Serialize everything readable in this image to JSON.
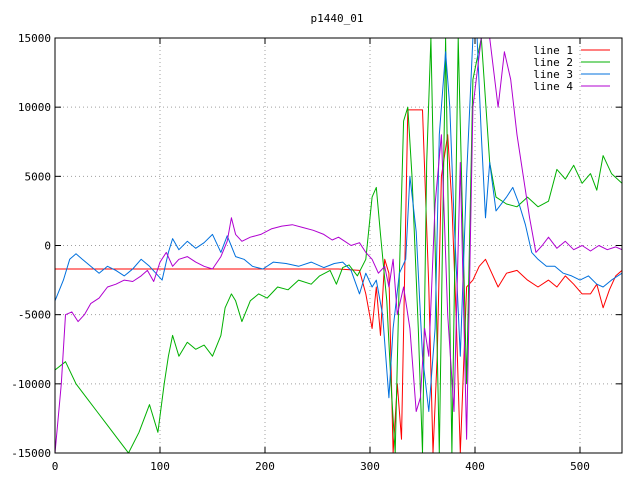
{
  "chart_data": {
    "type": "line",
    "title": "p1440_01",
    "xlabel": "",
    "ylabel": "",
    "xlim": [
      0,
      540
    ],
    "ylim": [
      -15000,
      15000
    ],
    "xticks": [
      0,
      100,
      200,
      300,
      400,
      500
    ],
    "yticks": [
      -15000,
      -10000,
      -5000,
      0,
      5000,
      10000,
      15000
    ],
    "grid": true,
    "legend_position": "top-right",
    "series": [
      {
        "name": "line 1",
        "color": "#ff0000",
        "points": [
          [
            0,
            -1700
          ],
          [
            270,
            -1700
          ],
          [
            290,
            -1800
          ],
          [
            296,
            -3500
          ],
          [
            302,
            -6000
          ],
          [
            306,
            -3000
          ],
          [
            310,
            -6500
          ],
          [
            314,
            -1000
          ],
          [
            318,
            -2000
          ],
          [
            322,
            -15000
          ],
          [
            326,
            -10000
          ],
          [
            330,
            -14000
          ],
          [
            336,
            9800
          ],
          [
            350,
            9800
          ],
          [
            356,
            -3000
          ],
          [
            360,
            -15000
          ],
          [
            364,
            -8000
          ],
          [
            368,
            5000
          ],
          [
            374,
            8000
          ],
          [
            378,
            3000
          ],
          [
            382,
            -5000
          ],
          [
            386,
            -15000
          ],
          [
            392,
            -3000
          ],
          [
            398,
            -2500
          ],
          [
            404,
            -1500
          ],
          [
            410,
            -1000
          ],
          [
            416,
            -2000
          ],
          [
            422,
            -3000
          ],
          [
            430,
            -2000
          ],
          [
            440,
            -1800
          ],
          [
            450,
            -2500
          ],
          [
            460,
            -3000
          ],
          [
            470,
            -2500
          ],
          [
            478,
            -3000
          ],
          [
            486,
            -2200
          ],
          [
            494,
            -2800
          ],
          [
            502,
            -3500
          ],
          [
            510,
            -3500
          ],
          [
            516,
            -2800
          ],
          [
            522,
            -4500
          ],
          [
            528,
            -3200
          ],
          [
            534,
            -2200
          ],
          [
            540,
            -1800
          ]
        ]
      },
      {
        "name": "line 2",
        "color": "#00b000",
        "points": [
          [
            0,
            -9000
          ],
          [
            10,
            -8400
          ],
          [
            20,
            -10000
          ],
          [
            30,
            -11000
          ],
          [
            40,
            -12000
          ],
          [
            50,
            -13000
          ],
          [
            60,
            -14000
          ],
          [
            70,
            -15000
          ],
          [
            80,
            -13500
          ],
          [
            90,
            -11500
          ],
          [
            98,
            -13500
          ],
          [
            104,
            -10000
          ],
          [
            108,
            -8000
          ],
          [
            112,
            -6500
          ],
          [
            118,
            -8000
          ],
          [
            126,
            -7000
          ],
          [
            134,
            -7500
          ],
          [
            142,
            -7200
          ],
          [
            150,
            -8000
          ],
          [
            158,
            -6500
          ],
          [
            162,
            -4500
          ],
          [
            168,
            -3500
          ],
          [
            172,
            -4000
          ],
          [
            178,
            -5500
          ],
          [
            186,
            -4000
          ],
          [
            194,
            -3500
          ],
          [
            202,
            -3800
          ],
          [
            212,
            -3000
          ],
          [
            222,
            -3200
          ],
          [
            232,
            -2500
          ],
          [
            244,
            -2800
          ],
          [
            252,
            -2200
          ],
          [
            262,
            -1800
          ],
          [
            268,
            -2800
          ],
          [
            274,
            -1600
          ],
          [
            280,
            -1400
          ],
          [
            288,
            -2200
          ],
          [
            296,
            -1000
          ],
          [
            302,
            3500
          ],
          [
            306,
            4200
          ],
          [
            310,
            800
          ],
          [
            316,
            -4000
          ],
          [
            320,
            -10000
          ],
          [
            324,
            -15000
          ],
          [
            328,
            -2000
          ],
          [
            332,
            9000
          ],
          [
            336,
            10000
          ],
          [
            340,
            5000
          ],
          [
            346,
            -6000
          ],
          [
            350,
            -15000
          ],
          [
            354,
            6000
          ],
          [
            358,
            15000
          ],
          [
            366,
            -15000
          ],
          [
            372,
            15000
          ],
          [
            378,
            -15000
          ],
          [
            384,
            15000
          ],
          [
            392,
            -10000
          ],
          [
            398,
            12000
          ],
          [
            406,
            15000
          ],
          [
            414,
            6000
          ],
          [
            420,
            3500
          ],
          [
            430,
            3000
          ],
          [
            440,
            2800
          ],
          [
            450,
            3500
          ],
          [
            460,
            2800
          ],
          [
            470,
            3200
          ],
          [
            478,
            5500
          ],
          [
            486,
            4800
          ],
          [
            494,
            5800
          ],
          [
            502,
            4500
          ],
          [
            510,
            5200
          ],
          [
            516,
            4000
          ],
          [
            522,
            6500
          ],
          [
            530,
            5200
          ],
          [
            540,
            4500
          ]
        ]
      },
      {
        "name": "line 3",
        "color": "#0070dd",
        "points": [
          [
            0,
            -4000
          ],
          [
            8,
            -2500
          ],
          [
            14,
            -1000
          ],
          [
            20,
            -600
          ],
          [
            26,
            -1000
          ],
          [
            34,
            -1500
          ],
          [
            42,
            -2000
          ],
          [
            50,
            -1500
          ],
          [
            58,
            -1800
          ],
          [
            66,
            -2200
          ],
          [
            74,
            -1700
          ],
          [
            82,
            -1000
          ],
          [
            90,
            -1500
          ],
          [
            96,
            -2000
          ],
          [
            102,
            -2500
          ],
          [
            108,
            -500
          ],
          [
            112,
            500
          ],
          [
            118,
            -300
          ],
          [
            126,
            300
          ],
          [
            134,
            -200
          ],
          [
            142,
            200
          ],
          [
            150,
            800
          ],
          [
            158,
            -500
          ],
          [
            164,
            700
          ],
          [
            172,
            -800
          ],
          [
            180,
            -1000
          ],
          [
            188,
            -1500
          ],
          [
            198,
            -1700
          ],
          [
            208,
            -1200
          ],
          [
            220,
            -1300
          ],
          [
            232,
            -1500
          ],
          [
            244,
            -1200
          ],
          [
            256,
            -1600
          ],
          [
            266,
            -1300
          ],
          [
            274,
            -1200
          ],
          [
            282,
            -1800
          ],
          [
            290,
            -3500
          ],
          [
            296,
            -2000
          ],
          [
            302,
            -3000
          ],
          [
            306,
            -2500
          ],
          [
            312,
            -5000
          ],
          [
            318,
            -11000
          ],
          [
            322,
            -6000
          ],
          [
            328,
            -2000
          ],
          [
            334,
            -1000
          ],
          [
            338,
            5000
          ],
          [
            344,
            1000
          ],
          [
            350,
            -8000
          ],
          [
            356,
            -12000
          ],
          [
            362,
            -6000
          ],
          [
            366,
            8000
          ],
          [
            372,
            14000
          ],
          [
            376,
            10000
          ],
          [
            380,
            2000
          ],
          [
            386,
            -8000
          ],
          [
            392,
            5000
          ],
          [
            398,
            15000
          ],
          [
            402,
            15000
          ],
          [
            406,
            8000
          ],
          [
            410,
            2000
          ],
          [
            414,
            6000
          ],
          [
            420,
            2500
          ],
          [
            430,
            3500
          ],
          [
            436,
            4200
          ],
          [
            442,
            3000
          ],
          [
            448,
            1500
          ],
          [
            454,
            -500
          ],
          [
            460,
            -1000
          ],
          [
            468,
            -1500
          ],
          [
            476,
            -1500
          ],
          [
            484,
            -2000
          ],
          [
            492,
            -2200
          ],
          [
            500,
            -2500
          ],
          [
            508,
            -2200
          ],
          [
            516,
            -2800
          ],
          [
            522,
            -3000
          ],
          [
            530,
            -2500
          ],
          [
            540,
            -2000
          ]
        ]
      },
      {
        "name": "line 4",
        "color": "#b000d0",
        "points": [
          [
            0,
            -15000
          ],
          [
            6,
            -10000
          ],
          [
            10,
            -5000
          ],
          [
            16,
            -4800
          ],
          [
            22,
            -5500
          ],
          [
            28,
            -5000
          ],
          [
            34,
            -4200
          ],
          [
            42,
            -3800
          ],
          [
            50,
            -3000
          ],
          [
            58,
            -2800
          ],
          [
            66,
            -2500
          ],
          [
            74,
            -2600
          ],
          [
            82,
            -2200
          ],
          [
            88,
            -1800
          ],
          [
            94,
            -2600
          ],
          [
            100,
            -1200
          ],
          [
            106,
            -500
          ],
          [
            112,
            -1500
          ],
          [
            118,
            -1000
          ],
          [
            126,
            -800
          ],
          [
            134,
            -1200
          ],
          [
            142,
            -1500
          ],
          [
            150,
            -1700
          ],
          [
            158,
            -800
          ],
          [
            164,
            300
          ],
          [
            168,
            2000
          ],
          [
            172,
            800
          ],
          [
            178,
            300
          ],
          [
            186,
            600
          ],
          [
            196,
            800
          ],
          [
            206,
            1200
          ],
          [
            216,
            1400
          ],
          [
            226,
            1500
          ],
          [
            236,
            1300
          ],
          [
            246,
            1100
          ],
          [
            256,
            800
          ],
          [
            264,
            400
          ],
          [
            270,
            600
          ],
          [
            276,
            300
          ],
          [
            282,
            0
          ],
          [
            290,
            200
          ],
          [
            296,
            -500
          ],
          [
            302,
            -1000
          ],
          [
            308,
            -2000
          ],
          [
            314,
            -1500
          ],
          [
            318,
            -3000
          ],
          [
            322,
            -1000
          ],
          [
            326,
            -5000
          ],
          [
            332,
            -3000
          ],
          [
            338,
            -6000
          ],
          [
            344,
            -12000
          ],
          [
            348,
            -11000
          ],
          [
            352,
            -6000
          ],
          [
            356,
            -8000
          ],
          [
            362,
            3000
          ],
          [
            368,
            8000
          ],
          [
            374,
            -5000
          ],
          [
            380,
            -12000
          ],
          [
            386,
            6000
          ],
          [
            392,
            -14000
          ],
          [
            398,
            10000
          ],
          [
            406,
            15000
          ],
          [
            414,
            15000
          ],
          [
            422,
            10000
          ],
          [
            428,
            14000
          ],
          [
            434,
            12000
          ],
          [
            440,
            8000
          ],
          [
            446,
            5000
          ],
          [
            452,
            2000
          ],
          [
            458,
            -500
          ],
          [
            464,
            0
          ],
          [
            470,
            600
          ],
          [
            478,
            -200
          ],
          [
            486,
            300
          ],
          [
            494,
            -300
          ],
          [
            502,
            0
          ],
          [
            510,
            -400
          ],
          [
            518,
            0
          ],
          [
            526,
            -300
          ],
          [
            534,
            -100
          ],
          [
            540,
            -300
          ]
        ]
      }
    ]
  }
}
